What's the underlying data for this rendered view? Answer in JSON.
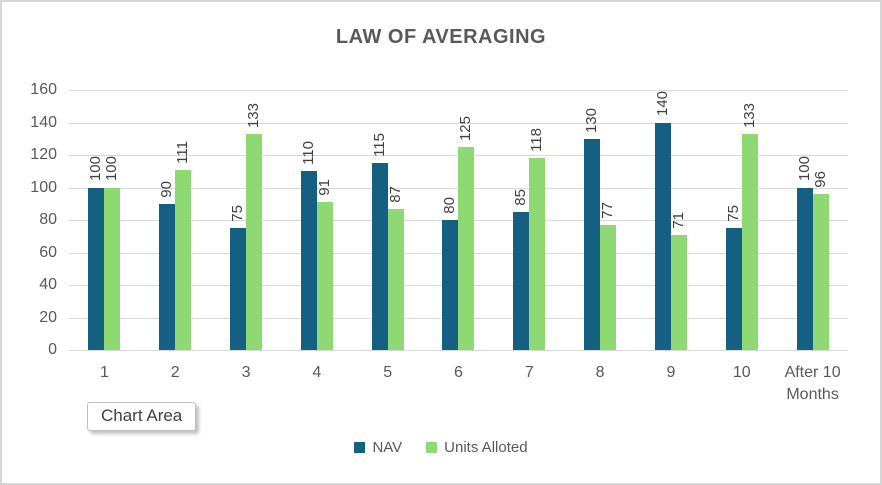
{
  "tooltip": {
    "label": "Chart Area"
  },
  "chart_data": {
    "type": "bar",
    "title": "LAW OF AVERAGING",
    "categories": [
      "1",
      "2",
      "3",
      "4",
      "5",
      "6",
      "7",
      "8",
      "9",
      "10",
      "After 10 Months"
    ],
    "series": [
      {
        "name": "NAV",
        "color": "#156082",
        "values": [
          100,
          90,
          75,
          110,
          115,
          80,
          85,
          130,
          140,
          75,
          100
        ]
      },
      {
        "name": "Units Alloted",
        "color": "#8ED973",
        "values": [
          100,
          111,
          133,
          91,
          87,
          125,
          118,
          77,
          71,
          133,
          96
        ]
      }
    ],
    "xlabel": "",
    "ylabel": "",
    "ylim": [
      0,
      160
    ],
    "yticks": [
      0,
      20,
      40,
      60,
      80,
      100,
      120,
      140,
      160
    ],
    "grid": true,
    "legend_position": "bottom",
    "data_labels": "rotated-outside-end",
    "colors": {
      "gridline": "#D9D9D9",
      "axis_text": "#595959",
      "data_label_text": "#404040",
      "title_text": "#595959",
      "canvas_border": "#D6D6D6",
      "background": "#FFFFFF"
    }
  }
}
